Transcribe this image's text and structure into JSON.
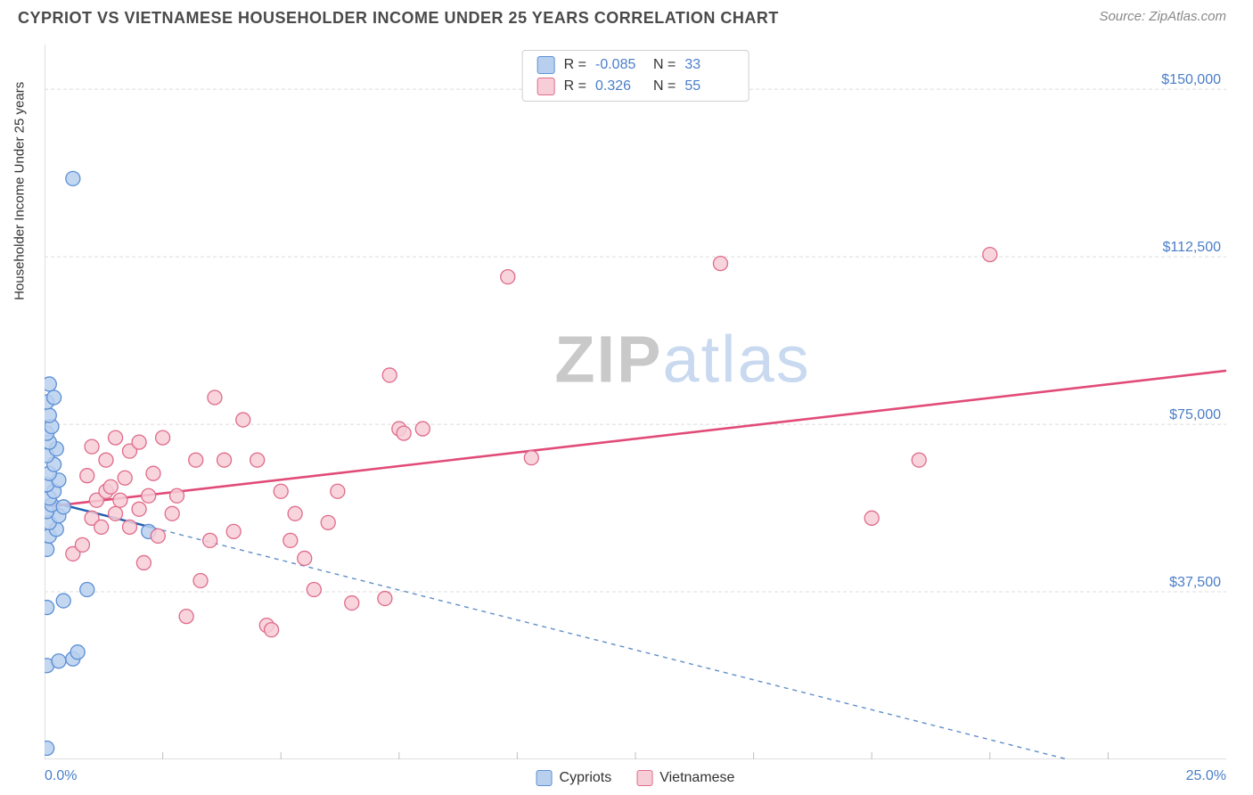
{
  "header": {
    "title": "CYPRIOT VS VIETNAMESE HOUSEHOLDER INCOME UNDER 25 YEARS CORRELATION CHART",
    "source": "Source: ZipAtlas.com"
  },
  "chart": {
    "type": "scatter",
    "y_axis_label": "Householder Income Under 25 years",
    "x_start_label": "0.0%",
    "x_end_label": "25.0%",
    "xlim": [
      0,
      25
    ],
    "ylim": [
      0,
      160000
    ],
    "y_ticks": [
      37500,
      75000,
      112500,
      150000
    ],
    "y_tick_labels": [
      "$37,500",
      "$75,000",
      "$112,500",
      "$150,000"
    ],
    "x_minor_ticks": [
      2.5,
      5,
      7.5,
      10,
      12.5,
      15,
      17.5,
      20,
      22.5
    ],
    "grid_color": "#dcdcdc",
    "grid_dash": "4,3",
    "axis_color": "#bfbfbf",
    "background_color": "#ffffff",
    "label_color": "#4a7ec9",
    "title_fontsize": 18,
    "label_fontsize": 15,
    "tick_fontsize": 16,
    "watermark": {
      "text_a": "ZIP",
      "text_b": "atlas",
      "color_a": "#c9c9c9",
      "color_b": "#c9d9ef"
    },
    "series": [
      {
        "name": "Cypriots",
        "marker_fill": "#b8d0ee",
        "marker_stroke": "#5b8fd6",
        "marker_radius": 8,
        "marker_opacity": 0.85,
        "line_color": "#1f5fb0",
        "line_width": 2.4,
        "line_dash_ext": "5,5",
        "r_value": "-0.085",
        "n_value": "33",
        "regression": {
          "x1": 0,
          "y1": 58000,
          "x2": 25,
          "y2": -9000,
          "solid_until_x": 2.3
        },
        "points": [
          [
            0.05,
            2500
          ],
          [
            0.05,
            21000
          ],
          [
            0.3,
            22000
          ],
          [
            0.6,
            22500
          ],
          [
            0.7,
            24000
          ],
          [
            0.05,
            34000
          ],
          [
            0.4,
            35500
          ],
          [
            0.9,
            38000
          ],
          [
            0.05,
            47000
          ],
          [
            0.1,
            50000
          ],
          [
            0.25,
            51500
          ],
          [
            0.1,
            53000
          ],
          [
            0.3,
            54500
          ],
          [
            0.05,
            55500
          ],
          [
            0.15,
            57000
          ],
          [
            0.4,
            56500
          ],
          [
            0.1,
            58500
          ],
          [
            0.2,
            60000
          ],
          [
            0.05,
            61500
          ],
          [
            0.3,
            62500
          ],
          [
            0.1,
            64000
          ],
          [
            0.2,
            66000
          ],
          [
            0.05,
            68000
          ],
          [
            0.25,
            69500
          ],
          [
            0.1,
            71000
          ],
          [
            0.05,
            73000
          ],
          [
            0.15,
            74500
          ],
          [
            0.1,
            77000
          ],
          [
            0.05,
            80000
          ],
          [
            0.2,
            81000
          ],
          [
            0.1,
            84000
          ],
          [
            2.2,
            51000
          ],
          [
            0.6,
            130000
          ]
        ]
      },
      {
        "name": "Vietnamese",
        "marker_fill": "#f7cdd7",
        "marker_stroke": "#e06b8a",
        "marker_radius": 8,
        "marker_opacity": 0.85,
        "line_color": "#e14b78",
        "line_width": 2.6,
        "r_value": "0.326",
        "n_value": "55",
        "regression": {
          "x1": 0,
          "y1": 56500,
          "x2": 25,
          "y2": 87000
        },
        "points": [
          [
            0.6,
            46000
          ],
          [
            0.8,
            48000
          ],
          [
            1.0,
            54000
          ],
          [
            1.1,
            58000
          ],
          [
            1.2,
            52000
          ],
          [
            1.3,
            67000
          ],
          [
            1.3,
            60000
          ],
          [
            0.9,
            63500
          ],
          [
            1.5,
            55000
          ],
          [
            1.5,
            72000
          ],
          [
            1.6,
            58000
          ],
          [
            1.7,
            63000
          ],
          [
            1.8,
            52000
          ],
          [
            1.8,
            69000
          ],
          [
            2.0,
            56000
          ],
          [
            2.0,
            71000
          ],
          [
            2.2,
            59000
          ],
          [
            2.3,
            64000
          ],
          [
            2.4,
            50000
          ],
          [
            2.5,
            72000
          ],
          [
            2.7,
            55000
          ],
          [
            3.0,
            32000
          ],
          [
            3.2,
            67000
          ],
          [
            3.3,
            40000
          ],
          [
            3.5,
            49000
          ],
          [
            3.6,
            81000
          ],
          [
            3.8,
            67000
          ],
          [
            4.0,
            51000
          ],
          [
            4.2,
            76000
          ],
          [
            4.5,
            67000
          ],
          [
            4.7,
            30000
          ],
          [
            4.8,
            29000
          ],
          [
            5.0,
            60000
          ],
          [
            5.2,
            49000
          ],
          [
            5.3,
            55000
          ],
          [
            5.5,
            45000
          ],
          [
            5.7,
            38000
          ],
          [
            6.0,
            53000
          ],
          [
            6.2,
            60000
          ],
          [
            6.5,
            35000
          ],
          [
            7.2,
            36000
          ],
          [
            7.3,
            86000
          ],
          [
            7.5,
            74000
          ],
          [
            7.6,
            73000
          ],
          [
            8.0,
            74000
          ],
          [
            9.8,
            108000
          ],
          [
            10.3,
            67500
          ],
          [
            14.3,
            111000
          ],
          [
            17.5,
            54000
          ],
          [
            18.5,
            67000
          ],
          [
            20.0,
            113000
          ],
          [
            1.0,
            70000
          ],
          [
            1.4,
            61000
          ],
          [
            2.1,
            44000
          ],
          [
            2.8,
            59000
          ]
        ]
      }
    ],
    "stats_box": {
      "rows": [
        {
          "swatch_fill": "#b8d0ee",
          "swatch_stroke": "#5b8fd6",
          "r_label": "R =",
          "r_val": "-0.085",
          "n_label": "N =",
          "n_val": "33"
        },
        {
          "swatch_fill": "#f7cdd7",
          "swatch_stroke": "#e06b8a",
          "r_label": "R =",
          "r_val": "0.326",
          "n_label": "N =",
          "n_val": "55"
        }
      ]
    },
    "bottom_legend": [
      {
        "label": "Cypriots",
        "fill": "#b8d0ee",
        "stroke": "#5b8fd6"
      },
      {
        "label": "Vietnamese",
        "fill": "#f7cdd7",
        "stroke": "#e06b8a"
      }
    ]
  }
}
